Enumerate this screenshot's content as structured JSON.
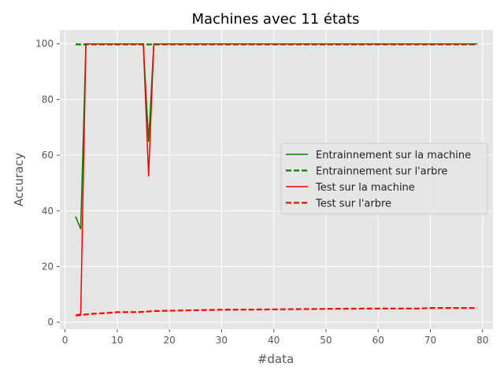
{
  "chart_data": {
    "type": "line",
    "title": "Machines avec 11 états",
    "xlabel": "#data",
    "ylabel": "Accuracy",
    "xlim": [
      -1,
      82
    ],
    "ylim": [
      -2.5,
      105
    ],
    "xticks": [
      0,
      10,
      20,
      30,
      40,
      50,
      60,
      70,
      80
    ],
    "yticks": [
      0,
      20,
      40,
      60,
      80,
      100
    ],
    "grid": true,
    "legend_position": "center-right",
    "colors": {
      "green": "#008000",
      "red": "#ff0000",
      "plot_bg": "#e5e5e5",
      "grid": "#ffffff"
    },
    "series": [
      {
        "name": "Entrainnement sur la machine",
        "color": "#008000",
        "dash": "solid",
        "points": [
          [
            2,
            38
          ],
          [
            3,
            33.5
          ],
          [
            4,
            100
          ],
          [
            15,
            100
          ],
          [
            16,
            65
          ],
          [
            17,
            100
          ],
          [
            79,
            100
          ]
        ]
      },
      {
        "name": "Entrainnement sur l'arbre",
        "color": "#008000",
        "dash": "dashed",
        "points": [
          [
            2,
            99.8
          ],
          [
            79,
            99.8
          ]
        ]
      },
      {
        "name": "Test sur la machine",
        "color": "#ff0000",
        "dash": "solid",
        "points": [
          [
            2,
            2.5
          ],
          [
            3,
            3
          ],
          [
            4,
            100
          ],
          [
            15,
            100
          ],
          [
            16,
            52.5
          ],
          [
            17,
            100
          ],
          [
            79,
            100
          ]
        ]
      },
      {
        "name": "Test sur l'arbre",
        "color": "#ff0000",
        "dash": "dashed",
        "points": [
          [
            2,
            2.4
          ],
          [
            5,
            3
          ],
          [
            8,
            3.3
          ],
          [
            10,
            3.6
          ],
          [
            14,
            3.6
          ],
          [
            17,
            4
          ],
          [
            22,
            4.2
          ],
          [
            30,
            4.5
          ],
          [
            40,
            4.6
          ],
          [
            50,
            4.8
          ],
          [
            60,
            4.9
          ],
          [
            68,
            4.9
          ],
          [
            70,
            5.1
          ],
          [
            79,
            5.1
          ]
        ]
      }
    ]
  }
}
